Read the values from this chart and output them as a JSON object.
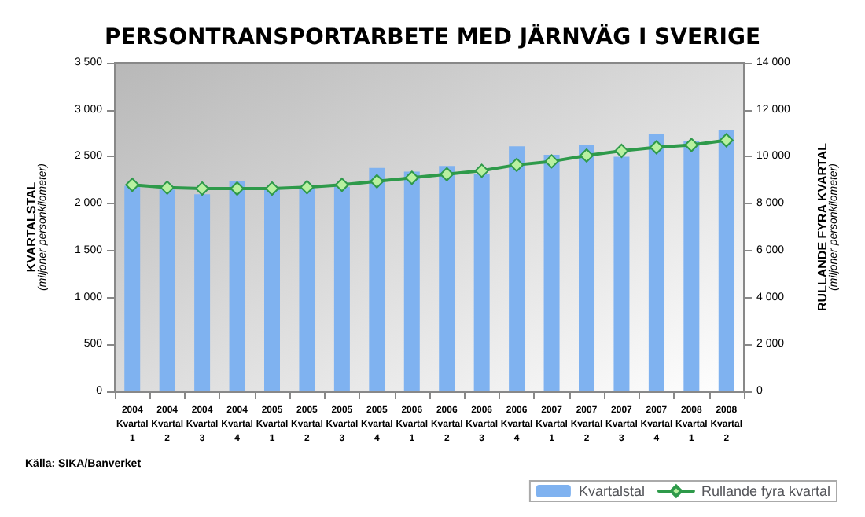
{
  "chart_data": {
    "type": "bar",
    "title": "PERSONTRANSPORTARBETE MED JÄRNVÄG I SVERIGE",
    "categories": [
      "2004\nKvartal\n1",
      "2004\nKvartal\n2",
      "2004\nKvartal\n3",
      "2004\nKvartal\n4",
      "2005\nKvartal\n1",
      "2005\nKvartal\n2",
      "2005\nKvartal\n3",
      "2005\nKvartal\n4",
      "2006\nKvartal\n1",
      "2006\nKvartal\n2",
      "2006\nKvartal\n3",
      "2006\nKvartal\n4",
      "2007\nKvartal\n1",
      "2007\nKvartal\n2",
      "2007\nKvartal\n3",
      "2007\nKvartal\n4",
      "2008\nKvartal\n1",
      "2008\nKvartal\n2"
    ],
    "series": [
      {
        "name": "Kvartalstal",
        "color": "#7fb2f0",
        "values": [
          2190,
          2150,
          2100,
          2240,
          2150,
          2170,
          2180,
          2380,
          2340,
          2400,
          2310,
          2610,
          2520,
          2630,
          2500,
          2740,
          2670,
          2780
        ]
      },
      {
        "name": "Rullande fyra kvartal",
        "type": "line",
        "axis": "y2",
        "color": "#2e9a4a",
        "values": [
          8800,
          8680,
          8640,
          8640,
          8640,
          8700,
          8800,
          8950,
          9100,
          9250,
          9400,
          9650,
          9800,
          10050,
          10250,
          10400,
          10500,
          10700
        ]
      }
    ],
    "ylabel": "KVARTALSTAL\n(miljoner personkilometer)",
    "y2label": "RULLANDE FYRA KVARTAL\n(miljoner personkilometer)",
    "ylim": [
      0,
      3500
    ],
    "yticks": [
      0,
      500,
      {
        "value": 1000,
        "label": "1 000"
      },
      {
        "value": 1500,
        "label": "1 500"
      },
      {
        "value": 2000,
        "label": "2 000"
      },
      {
        "value": 2500,
        "label": "2 500"
      },
      {
        "value": 3000,
        "label": "3 000"
      },
      {
        "value": 3500,
        "label": "3 500"
      }
    ],
    "y2lim": [
      0,
      14000
    ],
    "y2ticks": [
      0,
      {
        "value": 2000,
        "label": "2 000"
      },
      {
        "value": 4000,
        "label": "4 000"
      },
      {
        "value": 6000,
        "label": "6 000"
      },
      {
        "value": 8000,
        "label": "8 000"
      },
      {
        "value": 10000,
        "label": "10 000"
      },
      {
        "value": 12000,
        "label": "12 000"
      },
      {
        "value": 14000,
        "label": "14 000"
      }
    ],
    "annotations": [
      "Källa: SIKA/Banverket"
    ],
    "grid": false,
    "legend": "bottom right",
    "marker": "diamond"
  }
}
